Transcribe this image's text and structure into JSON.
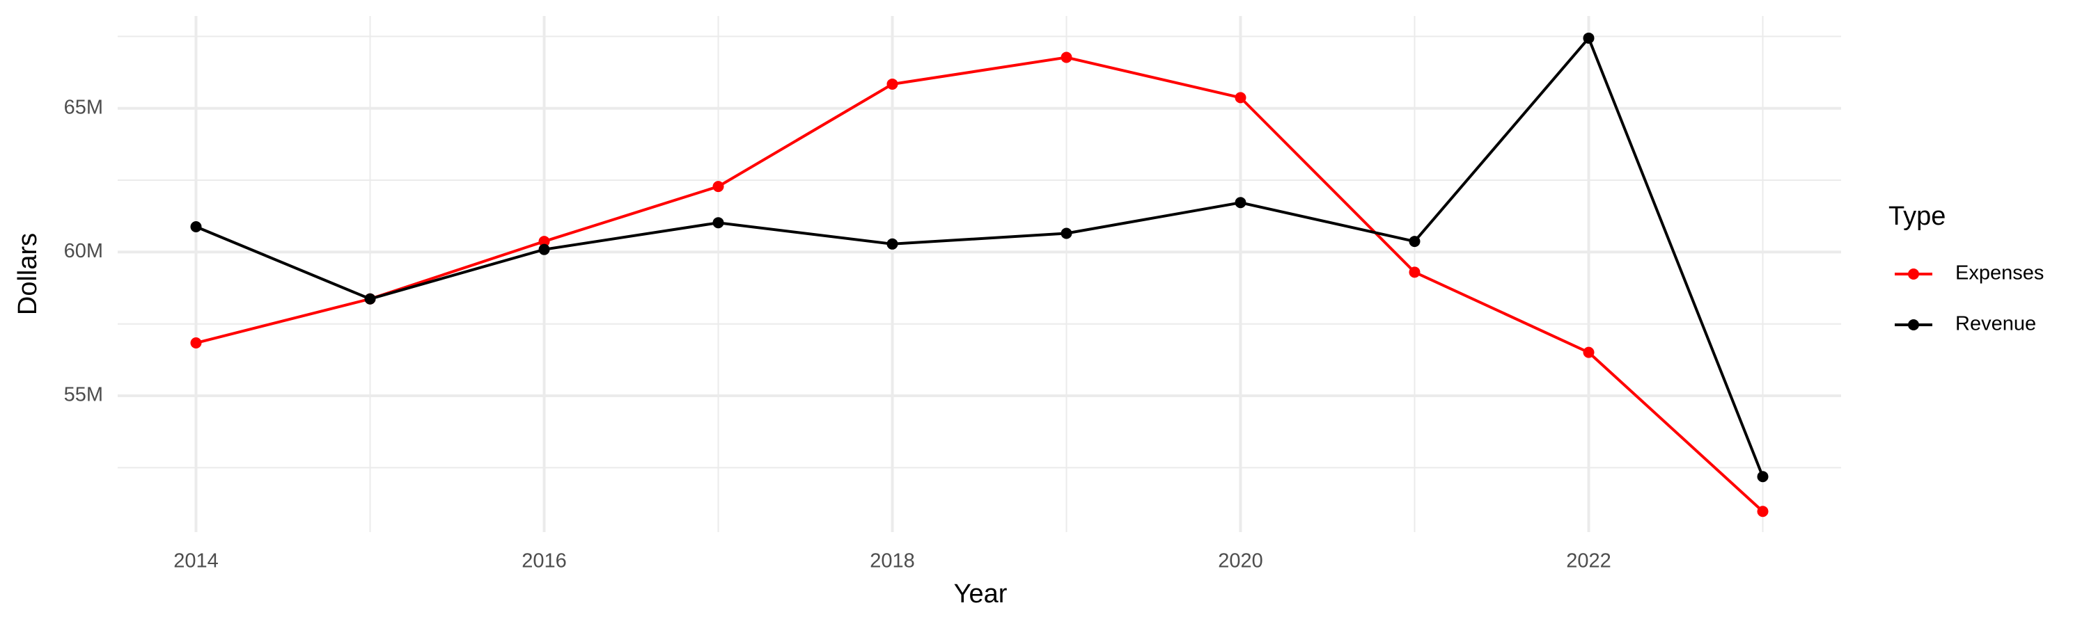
{
  "chart_data": {
    "type": "line",
    "x_label": "Year",
    "y_label": "Dollars",
    "legend_title": "Type",
    "legend_position": "right",
    "x": [
      2014,
      2015,
      2016,
      2017,
      2018,
      2019,
      2020,
      2021,
      2022,
      2023
    ],
    "series": [
      {
        "name": "Expenses",
        "color": "#ff0000",
        "values": [
          56840000,
          58370000,
          60370000,
          62280000,
          65840000,
          66770000,
          65370000,
          59300000,
          56510000,
          50980000
        ]
      },
      {
        "name": "Revenue",
        "color": "#000000",
        "values": [
          60880000,
          58370000,
          60090000,
          61020000,
          60280000,
          60650000,
          61720000,
          60370000,
          67440000,
          52190000
        ]
      }
    ],
    "xlim": [
      2013.55,
      2023.45
    ],
    "xticks": [
      2014,
      2016,
      2018,
      2020,
      2022
    ],
    "xminor": [
      2015,
      2017,
      2019,
      2021,
      2023
    ],
    "ylim": [
      50260000,
      68210000
    ],
    "yticks": [
      {
        "value": 55000000,
        "label": "55M"
      },
      {
        "value": 60000000,
        "label": "60M"
      },
      {
        "value": 65000000,
        "label": "65M"
      }
    ],
    "yminor": [
      52500000,
      57500000,
      62500000,
      67500000
    ],
    "grid": true
  }
}
